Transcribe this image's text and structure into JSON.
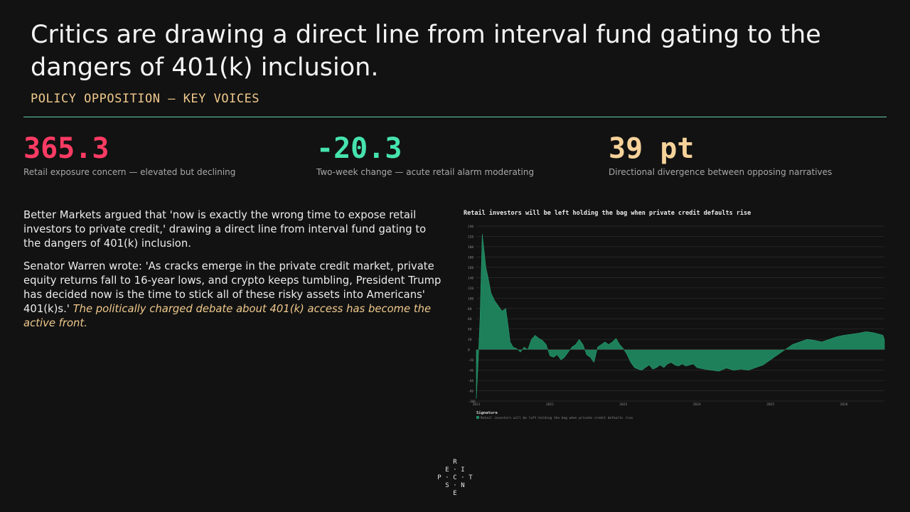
{
  "header": {
    "title": "Critics are drawing a direct line from interval fund gating to the dangers of 401(k) inclusion.",
    "subtitle": "POLICY OPPOSITION — KEY VOICES"
  },
  "kpis": [
    {
      "value": "365.3",
      "label": "Retail exposure concern — elevated but declining",
      "color": "#ff3b63"
    },
    {
      "value": "-20.3",
      "label": "Two-week change — acute retail alarm moderating",
      "color": "#46e3ad"
    },
    {
      "value": "39 pt",
      "label": "Directional divergence between opposing narratives",
      "color": "#f6d29a"
    }
  ],
  "body": {
    "p1": "Better Markets argued that 'now is exactly the wrong time to expose retail investors to private credit,' drawing a direct line from interval fund gating to the dangers of 401(k) inclusion.",
    "p2_main": "Senator Warren wrote: 'As cracks emerge in the private credit market, private equity returns fall to 16-year lows, and crypto keeps tumbling, President Trump has decided now is the time to stick all of these risky assets into Americans' 401(k)s.'",
    "p2_emph": "The politically charged debate about 401(k) access has become the active front."
  },
  "chart_data": {
    "type": "area",
    "title": "Retail investors will be left holding the bag when private credit defaults rise",
    "ylim": [
      -100,
      240
    ],
    "yticks": [
      240,
      220,
      200,
      180,
      160,
      140,
      120,
      100,
      80,
      60,
      40,
      20,
      0,
      -20,
      -40,
      -60,
      -80,
      -100
    ],
    "xlim": [
      2021.0,
      2026.55
    ],
    "xticks": [
      {
        "v": 2021.0,
        "label": "2021"
      },
      {
        "v": 2022.0,
        "label": "2022"
      },
      {
        "v": 2023.0,
        "label": "2023"
      },
      {
        "v": 2024.0,
        "label": "2024"
      },
      {
        "v": 2025.0,
        "label": "2025"
      },
      {
        "v": 2026.0,
        "label": "2026"
      }
    ],
    "grid": true,
    "legend_title": "Signature",
    "series": [
      {
        "name": "Retail investors will be left holding the bag when private credit defaults rise",
        "color": "#1f8a62",
        "x": [
          2021.0,
          2021.02,
          2021.05,
          2021.08,
          2021.1,
          2021.13,
          2021.16,
          2021.2,
          2021.25,
          2021.3,
          2021.35,
          2021.4,
          2021.43,
          2021.46,
          2021.5,
          2021.55,
          2021.6,
          2021.65,
          2021.7,
          2021.75,
          2021.8,
          2021.85,
          2021.9,
          2021.95,
          2022.0,
          2022.05,
          2022.1,
          2022.15,
          2022.2,
          2022.25,
          2022.3,
          2022.35,
          2022.4,
          2022.45,
          2022.5,
          2022.55,
          2022.6,
          2022.65,
          2022.7,
          2022.75,
          2022.8,
          2022.85,
          2022.9,
          2022.95,
          2023.0,
          2023.05,
          2023.1,
          2023.15,
          2023.2,
          2023.25,
          2023.3,
          2023.35,
          2023.4,
          2023.45,
          2023.5,
          2023.55,
          2023.6,
          2023.65,
          2023.7,
          2023.75,
          2023.8,
          2023.85,
          2023.9,
          2023.95,
          2024.0,
          2024.1,
          2024.2,
          2024.3,
          2024.4,
          2024.5,
          2024.6,
          2024.7,
          2024.8,
          2024.9,
          2025.0,
          2025.1,
          2025.2,
          2025.3,
          2025.4,
          2025.5,
          2025.6,
          2025.7,
          2025.8,
          2025.9,
          2026.0,
          2026.1,
          2026.2,
          2026.3,
          2026.4,
          2026.48,
          2026.53,
          2026.55
        ],
        "values": [
          -95,
          -40,
          60,
          225,
          200,
          160,
          140,
          110,
          95,
          85,
          75,
          80,
          50,
          15,
          5,
          2,
          -5,
          5,
          0,
          20,
          28,
          22,
          18,
          10,
          -12,
          -15,
          -10,
          -20,
          -15,
          -5,
          5,
          10,
          20,
          10,
          -10,
          -15,
          -25,
          5,
          10,
          15,
          10,
          15,
          22,
          10,
          2,
          -10,
          -25,
          -35,
          -38,
          -40,
          -35,
          -30,
          -38,
          -35,
          -30,
          -35,
          -28,
          -25,
          -30,
          -32,
          -28,
          -32,
          -30,
          -28,
          -35,
          -38,
          -40,
          -42,
          -36,
          -40,
          -38,
          -40,
          -35,
          -30,
          -20,
          -10,
          0,
          10,
          15,
          20,
          18,
          15,
          20,
          25,
          28,
          30,
          32,
          35,
          33,
          30,
          28,
          20
        ]
      }
    ]
  },
  "logo": {
    "letters": [
      "R",
      "E",
      "·",
      "I",
      "P",
      "·",
      "C",
      "·",
      "T",
      "S",
      "·",
      "N",
      "E"
    ],
    "name": "signature-mark"
  }
}
